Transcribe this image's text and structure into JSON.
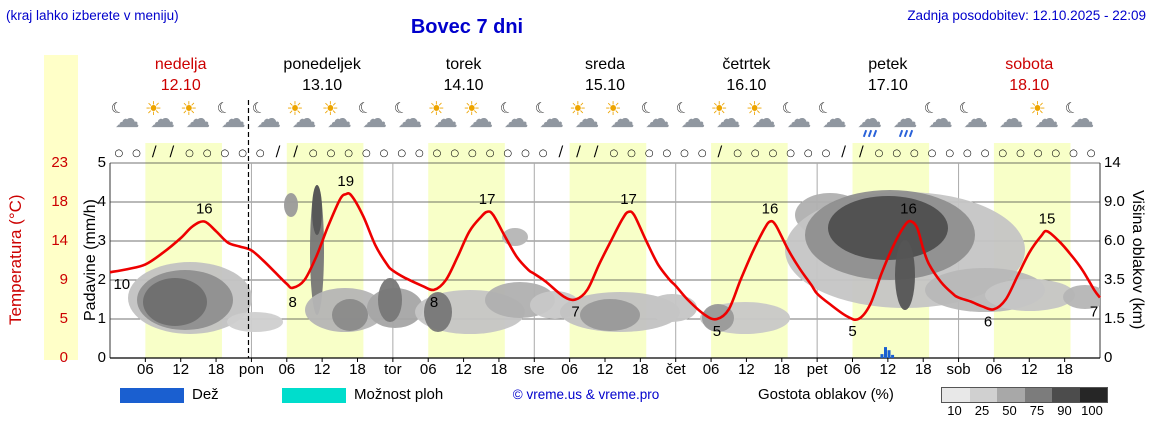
{
  "header": {
    "hint": "(kraj lahko izberete v meniju)",
    "title": "Bovec 7 dni",
    "updated": "Zadnja posodobitev: 12.10.2025 - 22:09"
  },
  "axes": {
    "temp_label": "Temperatura (°C)",
    "precip_label": "Padavine (mm/h)",
    "cloud_label": "Višina oblakov (km)",
    "temp_ticks": [
      "23",
      "18",
      "14",
      "9",
      "5",
      "0"
    ],
    "precip_ticks": [
      "5",
      "4",
      "3",
      "2",
      "1",
      "0"
    ],
    "cloud_ticks": [
      "14",
      "9.0",
      "6.0",
      "3.5",
      "1.5",
      "0"
    ]
  },
  "days": [
    {
      "name": "nedelja",
      "date": "12.10",
      "color": "#cc0000"
    },
    {
      "name": "ponedeljek",
      "date": "13.10",
      "color": "#000000"
    },
    {
      "name": "torek",
      "date": "14.10",
      "color": "#000000"
    },
    {
      "name": "sreda",
      "date": "15.10",
      "color": "#000000"
    },
    {
      "name": "četrtek",
      "date": "16.10",
      "color": "#000000"
    },
    {
      "name": "petek",
      "date": "17.10",
      "color": "#000000"
    },
    {
      "name": "sobota",
      "date": "18.10",
      "color": "#cc0000"
    }
  ],
  "xticks": [
    "06",
    "12",
    "18",
    "pon",
    "06",
    "12",
    "18",
    "tor",
    "06",
    "12",
    "18",
    "sre",
    "06",
    "12",
    "18",
    "čet",
    "06",
    "12",
    "18",
    "pet",
    "06",
    "12",
    "18",
    "sob",
    "06",
    "12",
    "18"
  ],
  "legend": {
    "rain_label": "Dež",
    "showers_label": "Možnost ploh",
    "copyright": "© vreme.us & vreme.pro",
    "cloud_density_label": "Gostota oblakov (%)",
    "density_scale": [
      "10",
      "25",
      "50",
      "75",
      "90",
      "100"
    ],
    "density_colors": [
      "#e8e8e8",
      "#d0d0d0",
      "#a8a8a8",
      "#7c7c7c",
      "#4c4c4c",
      "#262626"
    ],
    "rain_color": "#1a5fd0",
    "showers_color": "#00ddcc"
  },
  "chart_data": {
    "type": "meteogram",
    "title": "Bovec 7 dni",
    "temp_axis_values": [
      0,
      5,
      9,
      14,
      18,
      23
    ],
    "precip_axis_values": [
      0,
      1,
      2,
      3,
      4,
      5
    ],
    "cloud_height_axis_values": [
      0,
      1.5,
      3.5,
      6.0,
      9.0,
      14
    ],
    "band_color": "#f8ffc8",
    "curve_color": "#ee0000",
    "daylight": {
      "start": 6,
      "end": 19
    },
    "current_hour": 23.5,
    "temperature_series": [
      [
        0,
        10
      ],
      [
        3,
        10.4
      ],
      [
        6,
        11
      ],
      [
        9,
        12.5
      ],
      [
        12,
        14.3
      ],
      [
        14,
        15.5
      ],
      [
        16,
        16
      ],
      [
        18,
        15
      ],
      [
        20,
        13.8
      ],
      [
        22,
        13.3
      ],
      [
        24,
        12.8
      ],
      [
        26,
        11.5
      ],
      [
        28,
        10
      ],
      [
        30,
        8.6
      ],
      [
        31,
        8.2
      ],
      [
        33,
        9
      ],
      [
        35,
        12
      ],
      [
        37,
        15.5
      ],
      [
        39,
        18.3
      ],
      [
        40,
        19
      ],
      [
        41,
        18.8
      ],
      [
        43,
        16.5
      ],
      [
        45,
        13.5
      ],
      [
        47,
        11
      ],
      [
        48,
        10.2
      ],
      [
        50,
        9.3
      ],
      [
        53,
        8.4
      ],
      [
        55,
        8
      ],
      [
        57,
        9
      ],
      [
        59,
        12
      ],
      [
        61,
        15
      ],
      [
        63,
        16.5
      ],
      [
        64,
        17
      ],
      [
        65,
        16.7
      ],
      [
        67,
        14.5
      ],
      [
        69,
        12
      ],
      [
        71,
        10.3
      ],
      [
        72,
        9.8
      ],
      [
        74,
        8.8
      ],
      [
        77,
        7.3
      ],
      [
        79,
        7
      ],
      [
        81,
        8
      ],
      [
        83,
        11
      ],
      [
        85,
        14
      ],
      [
        87,
        16.3
      ],
      [
        88,
        17
      ],
      [
        89,
        16.6
      ],
      [
        91,
        14
      ],
      [
        93,
        11
      ],
      [
        95,
        9
      ],
      [
        96,
        8.4
      ],
      [
        98,
        7
      ],
      [
        101,
        5.4
      ],
      [
        103,
        5
      ],
      [
        105,
        6
      ],
      [
        107,
        9
      ],
      [
        109,
        12.5
      ],
      [
        111,
        15.2
      ],
      [
        112,
        16
      ],
      [
        113,
        15.6
      ],
      [
        115,
        13
      ],
      [
        117,
        10.5
      ],
      [
        119,
        8.5
      ],
      [
        120,
        7.6
      ],
      [
        122,
        6.6
      ],
      [
        125,
        5.3
      ],
      [
        127,
        5
      ],
      [
        129,
        6.5
      ],
      [
        131,
        10
      ],
      [
        133,
        13.5
      ],
      [
        135,
        15.7
      ],
      [
        136,
        16
      ],
      [
        137,
        15.3
      ],
      [
        138,
        13
      ],
      [
        139,
        11
      ],
      [
        141,
        8.8
      ],
      [
        143,
        7.6
      ],
      [
        144,
        7.2
      ],
      [
        146,
        6.8
      ],
      [
        148,
        6.3
      ],
      [
        150,
        6
      ],
      [
        152,
        7
      ],
      [
        154,
        9.5
      ],
      [
        156,
        12.5
      ],
      [
        158,
        14.5
      ],
      [
        159,
        15
      ],
      [
        161,
        14
      ],
      [
        163,
        12.3
      ],
      [
        165,
        10.3
      ],
      [
        167,
        8
      ],
      [
        168,
        7.2
      ]
    ],
    "temp_labels": [
      {
        "h": 2,
        "t": "10",
        "pos": "below"
      },
      {
        "h": 16,
        "t": "16",
        "pos": "above"
      },
      {
        "h": 31,
        "t": "8",
        "pos": "below"
      },
      {
        "h": 40,
        "t": "19",
        "pos": "above"
      },
      {
        "h": 55,
        "t": "8",
        "pos": "below"
      },
      {
        "h": 64,
        "t": "17",
        "pos": "above"
      },
      {
        "h": 79,
        "t": "7",
        "pos": "below"
      },
      {
        "h": 88,
        "t": "17",
        "pos": "above"
      },
      {
        "h": 103,
        "t": "5",
        "pos": "below"
      },
      {
        "h": 112,
        "t": "16",
        "pos": "above"
      },
      {
        "h": 126,
        "t": "5",
        "pos": "below"
      },
      {
        "h": 135.5,
        "t": "16",
        "pos": "above"
      },
      {
        "h": 149,
        "t": "6",
        "pos": "below"
      },
      {
        "h": 159,
        "t": "15",
        "pos": "above"
      },
      {
        "h": 167,
        "t": "7",
        "pos": "below"
      }
    ],
    "clouds": [
      {
        "cx": 190,
        "cy": 298,
        "rx": 62,
        "ry": 36,
        "fill": "#c2c2c2"
      },
      {
        "cx": 185,
        "cy": 300,
        "rx": 48,
        "ry": 30,
        "fill": "#8f8f8f"
      },
      {
        "cx": 175,
        "cy": 302,
        "rx": 32,
        "ry": 24,
        "fill": "#6f6f6f"
      },
      {
        "cx": 255,
        "cy": 322,
        "rx": 28,
        "ry": 10,
        "fill": "#cfcfcf"
      },
      {
        "cx": 291,
        "cy": 205,
        "rx": 7,
        "ry": 12,
        "fill": "#9a9a9a"
      },
      {
        "cx": 317,
        "cy": 250,
        "rx": 7,
        "ry": 65,
        "fill": "#777777"
      },
      {
        "cx": 317,
        "cy": 210,
        "rx": 5,
        "ry": 25,
        "fill": "#555555"
      },
      {
        "cx": 345,
        "cy": 310,
        "rx": 40,
        "ry": 22,
        "fill": "#b5b5b5"
      },
      {
        "cx": 350,
        "cy": 315,
        "rx": 18,
        "ry": 16,
        "fill": "#8a8a8a"
      },
      {
        "cx": 395,
        "cy": 308,
        "rx": 28,
        "ry": 20,
        "fill": "#a5a5a5"
      },
      {
        "cx": 390,
        "cy": 300,
        "rx": 12,
        "ry": 22,
        "fill": "#777777"
      },
      {
        "cx": 470,
        "cy": 312,
        "rx": 55,
        "ry": 22,
        "fill": "#c5c5c5"
      },
      {
        "cx": 438,
        "cy": 312,
        "rx": 14,
        "ry": 20,
        "fill": "#777777"
      },
      {
        "cx": 520,
        "cy": 300,
        "rx": 35,
        "ry": 18,
        "fill": "#b0b0b0"
      },
      {
        "cx": 515,
        "cy": 237,
        "rx": 13,
        "ry": 9,
        "fill": "#b5b5b5"
      },
      {
        "cx": 555,
        "cy": 305,
        "rx": 25,
        "ry": 14,
        "fill": "#c8c8c8"
      },
      {
        "cx": 620,
        "cy": 312,
        "rx": 60,
        "ry": 20,
        "fill": "#c2c2c2"
      },
      {
        "cx": 610,
        "cy": 315,
        "rx": 30,
        "ry": 16,
        "fill": "#999999"
      },
      {
        "cx": 672,
        "cy": 308,
        "rx": 25,
        "ry": 14,
        "fill": "#c5c5c5"
      },
      {
        "cx": 745,
        "cy": 318,
        "rx": 45,
        "ry": 16,
        "fill": "#c8c8c8"
      },
      {
        "cx": 718,
        "cy": 318,
        "rx": 16,
        "ry": 14,
        "fill": "#999999"
      },
      {
        "cx": 830,
        "cy": 215,
        "rx": 35,
        "ry": 22,
        "fill": "#b0b0b0"
      },
      {
        "cx": 905,
        "cy": 250,
        "rx": 120,
        "ry": 58,
        "fill": "#c5c5c5"
      },
      {
        "cx": 890,
        "cy": 235,
        "rx": 85,
        "ry": 45,
        "fill": "#8f8f8f"
      },
      {
        "cx": 888,
        "cy": 228,
        "rx": 60,
        "ry": 32,
        "fill": "#4f4f4f"
      },
      {
        "cx": 905,
        "cy": 275,
        "rx": 10,
        "ry": 35,
        "fill": "#555555"
      },
      {
        "cx": 985,
        "cy": 290,
        "rx": 60,
        "ry": 22,
        "fill": "#b8b8b8"
      },
      {
        "cx": 1030,
        "cy": 295,
        "rx": 45,
        "ry": 16,
        "fill": "#c5c5c5"
      },
      {
        "cx": 1085,
        "cy": 297,
        "rx": 22,
        "ry": 12,
        "fill": "#b5b5b5"
      }
    ],
    "precip_bars": [
      {
        "h": 131,
        "mm": 0.1
      },
      {
        "h": 131.6,
        "mm": 0.28
      },
      {
        "h": 132.2,
        "mm": 0.2
      },
      {
        "h": 132.8,
        "mm": 0.08
      }
    ],
    "wind": [
      "○",
      "○",
      "/",
      "/",
      "○",
      "○",
      "○",
      "○",
      "○",
      "/",
      "/",
      "○",
      "○",
      "○",
      "○",
      "○",
      "○",
      "○",
      "○",
      "○",
      "○",
      "○",
      "○",
      "○",
      "○",
      "/",
      "/",
      "/",
      "○",
      "○",
      "○",
      "○",
      "○",
      "○",
      "/",
      "○",
      "○",
      "○",
      "○",
      "○",
      "○",
      "/",
      "/",
      "○",
      "○",
      "○",
      "○",
      "○",
      "○",
      "○",
      "○",
      "○",
      "○",
      "○",
      "○",
      "○"
    ],
    "icons": [
      [
        "moon-cloud",
        "sun-cloud",
        "sun-cloud",
        "moon-cloud"
      ],
      [
        "moon-cloud",
        "sun-cloud",
        "sun-cloud",
        "moon-cloud"
      ],
      [
        "moon-cloud",
        "sun-cloud",
        "sun-cloud",
        "moon-cloud"
      ],
      [
        "moon-cloud",
        "sun-cloud",
        "sun-cloud",
        "moon-cloud"
      ],
      [
        "moon-cloud",
        "sun-cloud",
        "sun-cloud",
        "moon-cloud"
      ],
      [
        "moon-cloud",
        "rain-cloud",
        "rain-cloud",
        "moon-cloud"
      ],
      [
        "moon-cloud",
        "cloud",
        "sun-cloud",
        "moon-cloud"
      ]
    ]
  }
}
